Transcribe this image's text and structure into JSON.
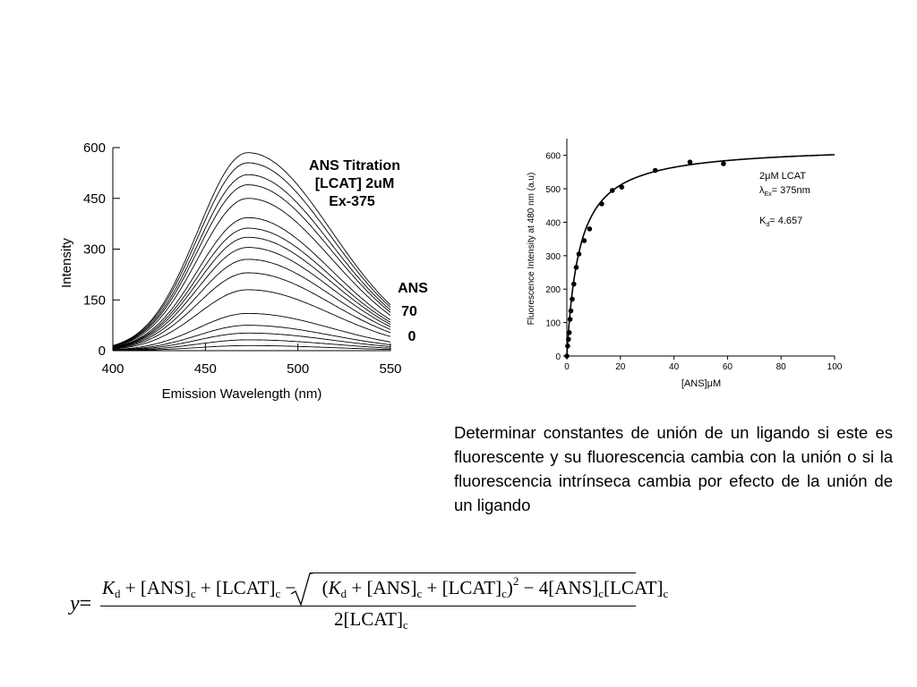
{
  "chart_data": [
    {
      "type": "line",
      "title": "ANS Titration",
      "subtitle": [
        "[LCAT] 2uM",
        "Ex-375"
      ],
      "xlabel": "Emission Wavelength (nm)",
      "ylabel": "Intensity",
      "xlim": [
        400,
        550
      ],
      "ylim": [
        0,
        600
      ],
      "xticks": [
        400,
        450,
        500,
        550
      ],
      "yticks": [
        0,
        150,
        300,
        450,
        600
      ],
      "peak_x": 473,
      "series_peaks": [
        15,
        32,
        52,
        75,
        110,
        180,
        230,
        270,
        305,
        335,
        362,
        393,
        450,
        490,
        520,
        555,
        585
      ],
      "annotations": {
        "ans_label": "ANS",
        "top_label": "70",
        "bottom_label": "0"
      },
      "grid": false,
      "legend": "none"
    },
    {
      "type": "scatter",
      "xlabel": "[ANS]μM",
      "ylabel": "Fluorescence Intensity at 480 nm (a.u)",
      "xlim": [
        0,
        100
      ],
      "ylim": [
        0,
        650
      ],
      "xticks": [
        0,
        20,
        40,
        60,
        80,
        100
      ],
      "yticks": [
        0,
        100,
        200,
        300,
        400,
        500,
        600
      ],
      "x": [
        0,
        0.3,
        0.6,
        0.9,
        1.2,
        1.5,
        2.0,
        2.6,
        3.5,
        4.5,
        6.5,
        8.5,
        13,
        17,
        20.5,
        33,
        46,
        58.5
      ],
      "y": [
        0,
        30,
        50,
        70,
        110,
        135,
        170,
        215,
        265,
        305,
        345,
        380,
        455,
        495,
        505,
        555,
        580,
        575
      ],
      "fit": {
        "type": "hyperbolic",
        "Bmax": 630,
        "Kd": 4.657
      },
      "annotation": {
        "line1": "2μM LCAT",
        "line2_lambda": "λ",
        "line2_sub": "Ex",
        "line2_rest": "= 375nm",
        "line3_k": "K",
        "line3_sub": "d",
        "line3_rest": "= 4.657"
      },
      "grid": false,
      "legend": "none"
    }
  ],
  "text": {
    "description": "Determinar constantes de unión de un ligando si este es fluorescente y su fluorescencia cambia con la unión o si la fluorescencia intrínseca cambia por efecto de la unión de un ligando"
  },
  "equation": {
    "y": "y",
    "eq": "=",
    "kd_k": "K",
    "kd_d": "d",
    "plus": "+",
    "minus": "−",
    "ans": "[ANS]",
    "lcat": "[LCAT]",
    "c": "c",
    "sq_open": "(",
    "sq_close": ")",
    "sq_exp": "2",
    "four": "4",
    "den_two": "2",
    "radical": "√"
  }
}
